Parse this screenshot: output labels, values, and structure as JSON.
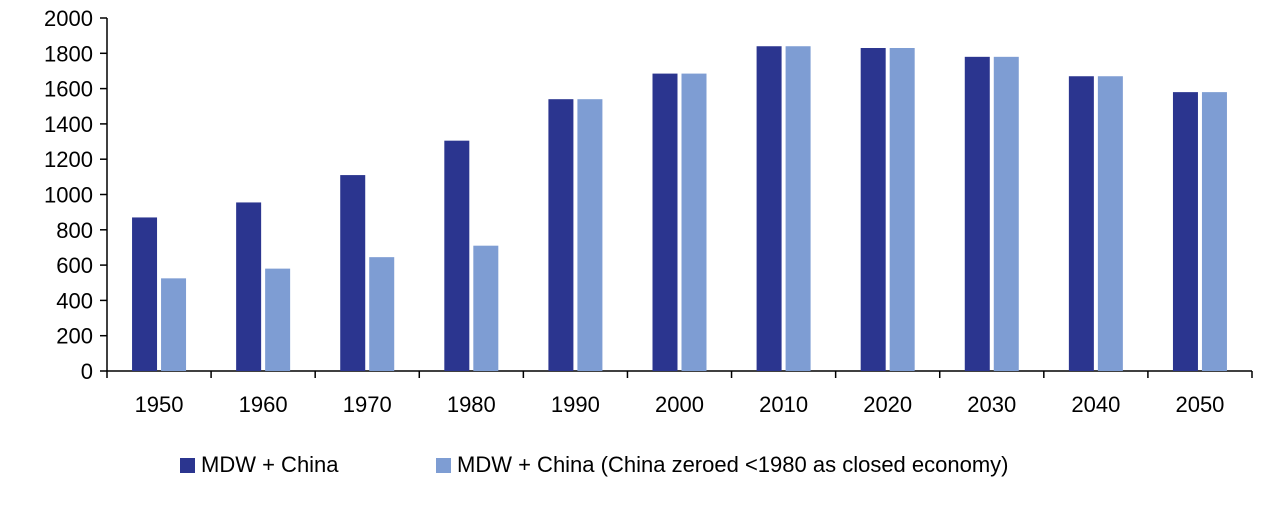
{
  "chart_data": {
    "type": "bar",
    "categories": [
      "1950",
      "1960",
      "1970",
      "1980",
      "1990",
      "2000",
      "2010",
      "2020",
      "2030",
      "2040",
      "2050"
    ],
    "series": [
      {
        "name": "MDW + China",
        "color": "#2b358f",
        "values": [
          870,
          955,
          1110,
          1305,
          1540,
          1685,
          1840,
          1830,
          1780,
          1670,
          1580
        ]
      },
      {
        "name": "MDW + China (China zeroed <1980 as closed economy)",
        "color": "#7e9dd3",
        "values": [
          525,
          580,
          645,
          710,
          1540,
          1685,
          1840,
          1830,
          1780,
          1670,
          1580
        ]
      }
    ],
    "ylim": [
      0,
      2000
    ],
    "yticks": [
      0,
      200,
      400,
      600,
      800,
      1000,
      1200,
      1400,
      1600,
      1800,
      2000
    ],
    "title": "",
    "xlabel": "",
    "ylabel": "",
    "grid": false,
    "legend_position": "bottom"
  }
}
